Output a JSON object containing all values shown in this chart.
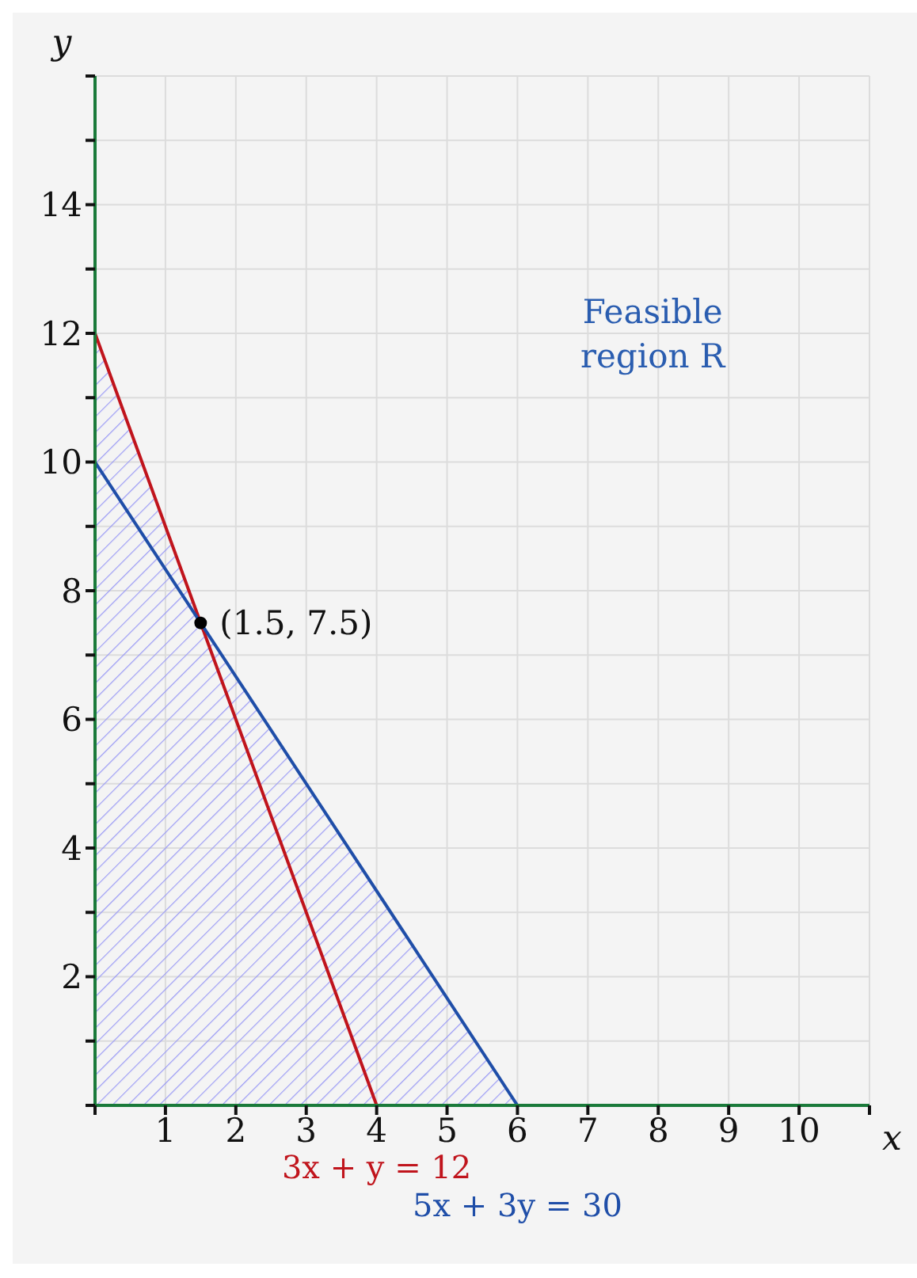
{
  "chart_data": {
    "type": "line",
    "xlabel": "x",
    "ylabel": "y",
    "xlim": [
      0,
      11
    ],
    "ylim": [
      0,
      16
    ],
    "xticks": [
      {
        "value": 0,
        "label": null
      },
      1,
      2,
      3,
      4,
      5,
      6,
      7,
      8,
      9,
      10,
      {
        "value": 11,
        "label": null
      }
    ],
    "yticks": [
      {
        "value": 0,
        "label": null
      },
      {
        "value": 1,
        "label": null
      },
      2,
      {
        "value": 3,
        "label": null
      },
      4,
      {
        "value": 5,
        "label": null
      },
      6,
      {
        "value": 7,
        "label": null
      },
      8,
      {
        "value": 9,
        "label": null
      },
      10,
      {
        "value": 11,
        "label": null
      },
      12,
      {
        "value": 13,
        "label": null
      },
      14,
      {
        "value": 15,
        "label": null
      },
      {
        "value": 16,
        "label": null
      }
    ],
    "grid": true,
    "series": [
      {
        "type": "area",
        "color": "#9b9bf5",
        "x": [
          0,
          1.5,
          6
        ],
        "values": [
          12,
          7.5,
          0
        ]
      },
      {
        "name": "3x + y = 12",
        "color": "#c0141c",
        "x": [
          0,
          4
        ],
        "values": [
          12,
          0
        ]
      },
      {
        "name": "5x + 3y = 30",
        "color": "#1f4ea8",
        "x": [
          0,
          6
        ],
        "values": [
          10,
          0
        ]
      },
      {
        "type": "scatter",
        "color": "#000000",
        "x": [
          1.5
        ],
        "values": [
          7.5
        ]
      }
    ],
    "annotations": [
      {
        "text": "(1.5,  7.5)",
        "x": 1.5,
        "y": 7.5
      },
      "Feasible region R"
    ]
  }
}
